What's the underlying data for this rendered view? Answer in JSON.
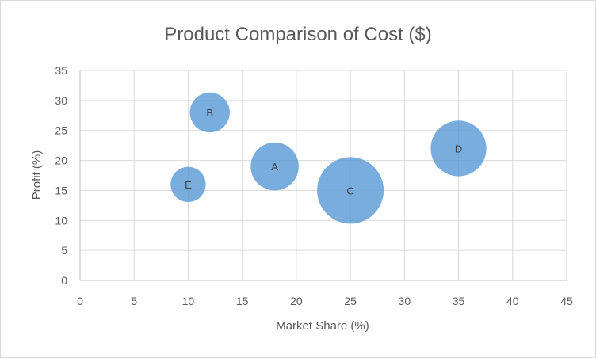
{
  "chart_data": {
    "type": "scatter",
    "subtype": "bubble",
    "title": "Product Comparison of Cost ($)",
    "xlabel": "Market Share (%)",
    "ylabel": "Profit (%)",
    "xlim": [
      0,
      45
    ],
    "ylim": [
      0,
      35
    ],
    "xticks": [
      0,
      5,
      10,
      15,
      20,
      25,
      30,
      35,
      40,
      45
    ],
    "yticks": [
      0,
      5,
      10,
      15,
      20,
      25,
      30,
      35
    ],
    "grid": true,
    "legend": "none",
    "bubble_color": "#5b9bd5",
    "points": [
      {
        "label": "A",
        "x": 18,
        "y": 19,
        "size": 26
      },
      {
        "label": "B",
        "x": 12,
        "y": 28,
        "size": 18
      },
      {
        "label": "C",
        "x": 25,
        "y": 15,
        "size": 50
      },
      {
        "label": "D",
        "x": 35,
        "y": 22,
        "size": 35
      },
      {
        "label": "E",
        "x": 10,
        "y": 16,
        "size": 14
      }
    ]
  }
}
